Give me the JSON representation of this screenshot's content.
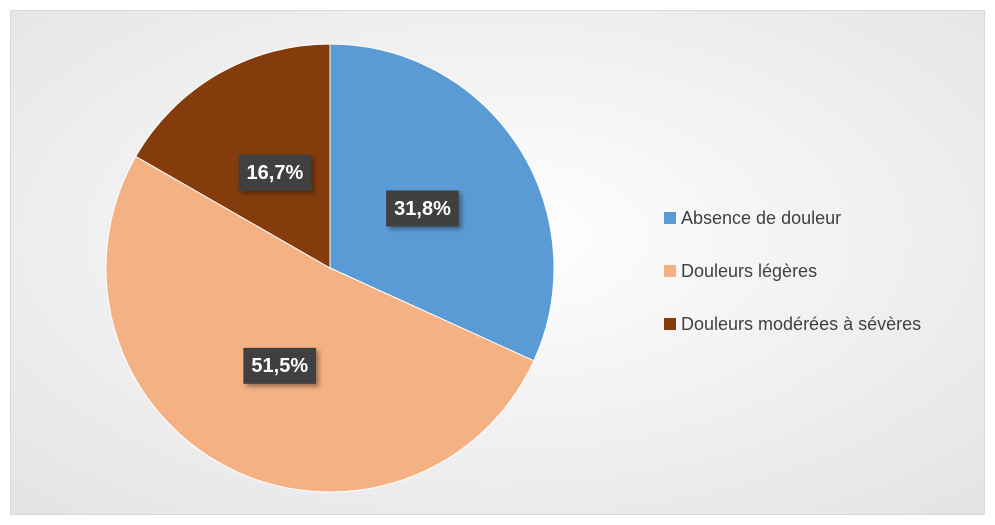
{
  "chart_data": {
    "type": "pie",
    "categories": [
      "Absence de douleur",
      "Douleurs légères",
      "Douleurs modérées à sévères"
    ],
    "values": [
      31.8,
      51.5,
      16.7
    ],
    "value_labels": [
      "31,8%",
      "51,5%",
      "16,7%"
    ],
    "colors": [
      "#5b9bd5",
      "#f4b183",
      "#843c0c"
    ],
    "legend": "right"
  }
}
